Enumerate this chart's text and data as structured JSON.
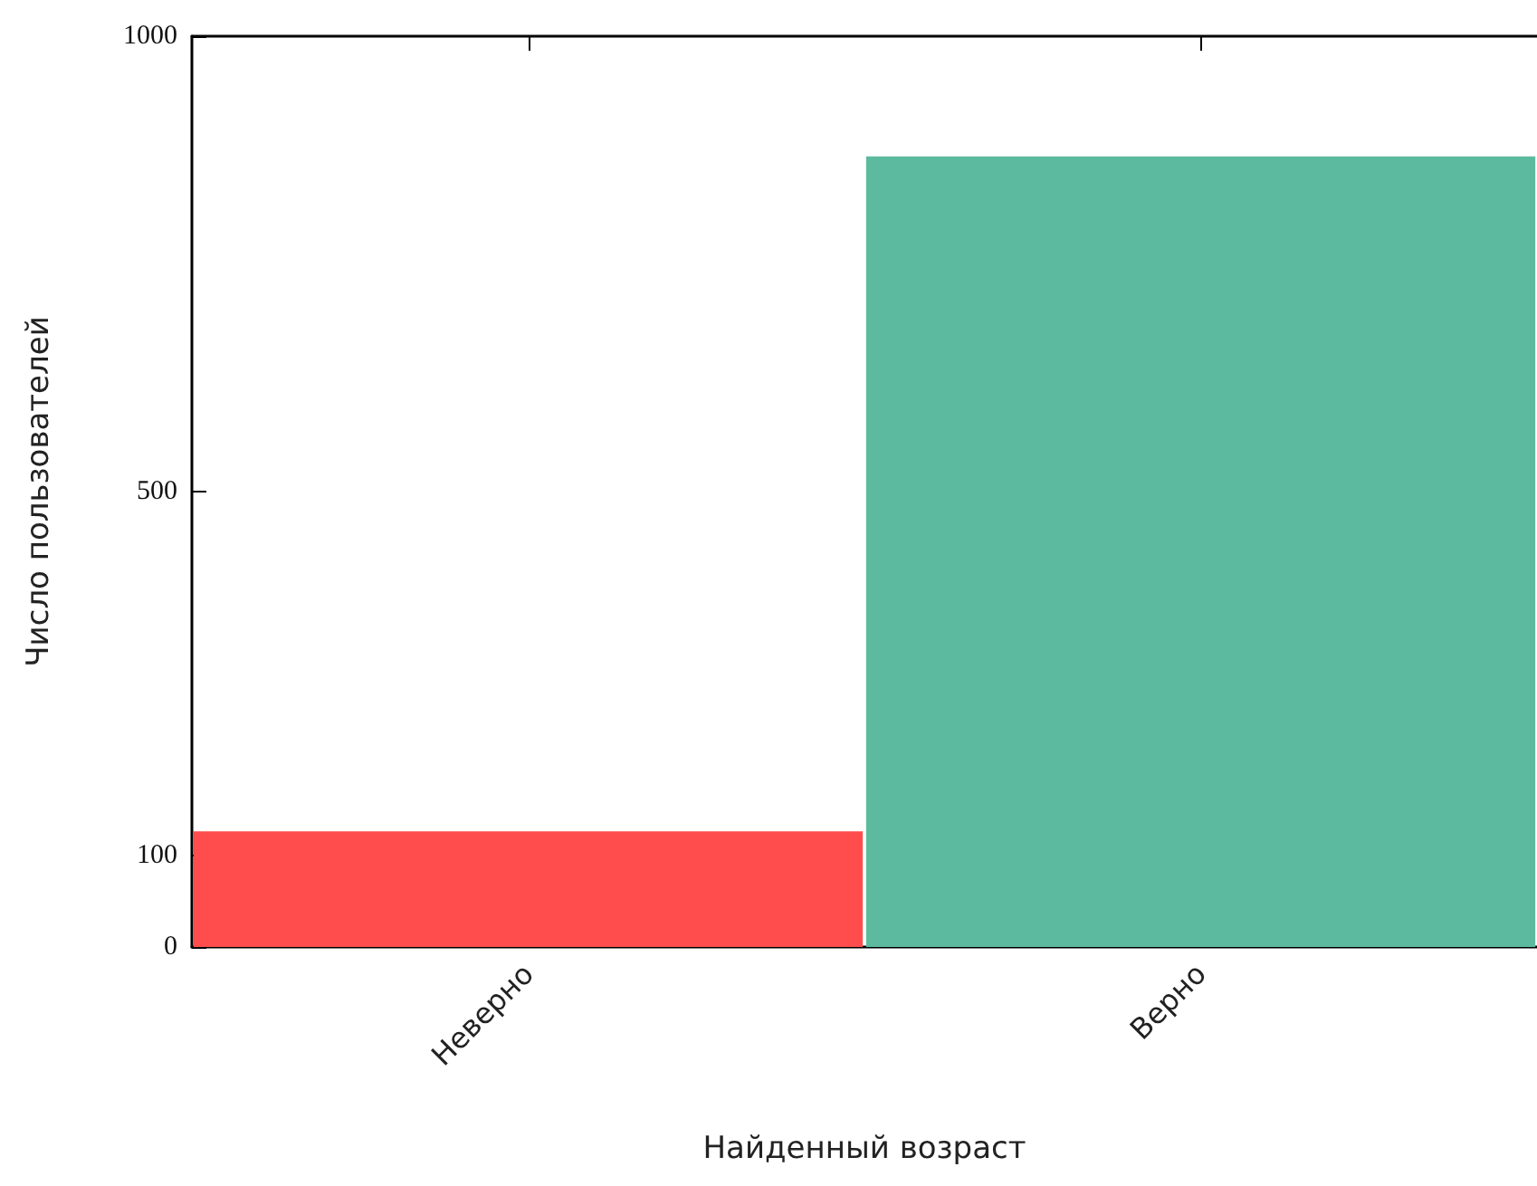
{
  "chart_data": {
    "type": "bar",
    "xlabel": "Найденный возраст",
    "ylabel": "Число пользователей",
    "categories": [
      "Неверно",
      "Верно"
    ],
    "values": [
      127,
      868
    ],
    "colors": [
      "#ff4c4c",
      "#5cba9e"
    ],
    "ylim": [
      0,
      1000
    ],
    "yticks": [
      0,
      100,
      500,
      1000
    ],
    "grid": false
  }
}
